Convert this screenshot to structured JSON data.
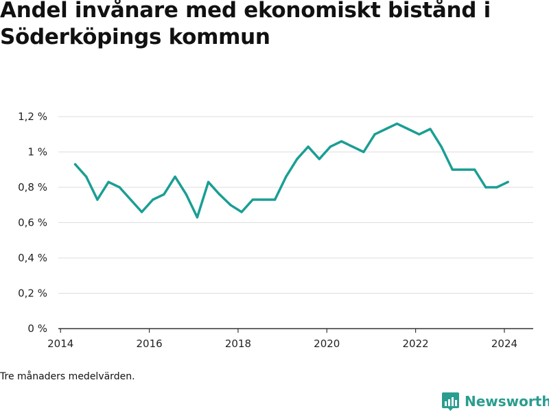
{
  "title": "Andel invånare med ekonomiskt bistånd i Söderköpings kommun",
  "note": "Tre månaders medelvärden.",
  "brand": {
    "name": "Newsworthy",
    "icon": "newsworthy-logo-icon",
    "color": "#2a9d8f"
  },
  "colors": {
    "line": "#1a9e94",
    "grid": "#dddddd",
    "axis": "#333333",
    "text": "#222222"
  },
  "chart_data": {
    "type": "line",
    "title": "Andel invånare med ekonomiskt bistånd i Söderköpings kommun",
    "xlabel": "",
    "ylabel": "",
    "xlim": [
      2013.95,
      2024.65
    ],
    "ylim": [
      0,
      1.2
    ],
    "grid": true,
    "x_ticks": [
      {
        "value": 2014,
        "label": "2014"
      },
      {
        "value": 2016,
        "label": "2016"
      },
      {
        "value": 2018,
        "label": "2018"
      },
      {
        "value": 2020,
        "label": "2020"
      },
      {
        "value": 2022,
        "label": "2022"
      },
      {
        "value": 2024,
        "label": "2024"
      }
    ],
    "y_ticks": [
      {
        "value": 0,
        "label": "0 %"
      },
      {
        "value": 0.2,
        "label": "0,2 %"
      },
      {
        "value": 0.4,
        "label": "0,4 %"
      },
      {
        "value": 0.6,
        "label": "0,6 %"
      },
      {
        "value": 0.8,
        "label": "0,8 %"
      },
      {
        "value": 1.0,
        "label": "1 %"
      },
      {
        "value": 1.2,
        "label": "1,2 %"
      }
    ],
    "series": [
      {
        "color": "#1a9e94",
        "x": [
          2014.33,
          2014.58,
          2014.83,
          2015.08,
          2015.33,
          2015.58,
          2015.83,
          2016.08,
          2016.33,
          2016.58,
          2016.83,
          2017.08,
          2017.33,
          2017.58,
          2017.83,
          2018.08,
          2018.33,
          2018.58,
          2018.83,
          2019.08,
          2019.33,
          2019.58,
          2019.83,
          2020.08,
          2020.33,
          2020.58,
          2020.83,
          2021.08,
          2021.33,
          2021.58,
          2021.83,
          2022.08,
          2022.33,
          2022.58,
          2022.83,
          2023.08,
          2023.33,
          2023.58,
          2023.83,
          2024.08
        ],
        "values": [
          0.93,
          0.86,
          0.73,
          0.83,
          0.8,
          0.73,
          0.66,
          0.73,
          0.76,
          0.86,
          0.76,
          0.63,
          0.83,
          0.76,
          0.7,
          0.66,
          0.73,
          0.73,
          0.73,
          0.86,
          0.96,
          1.03,
          0.96,
          1.03,
          1.06,
          1.03,
          1.0,
          1.1,
          1.13,
          1.16,
          1.13,
          1.1,
          1.13,
          1.03,
          0.9,
          0.9,
          0.9,
          0.8,
          0.8,
          0.83
        ]
      }
    ]
  }
}
